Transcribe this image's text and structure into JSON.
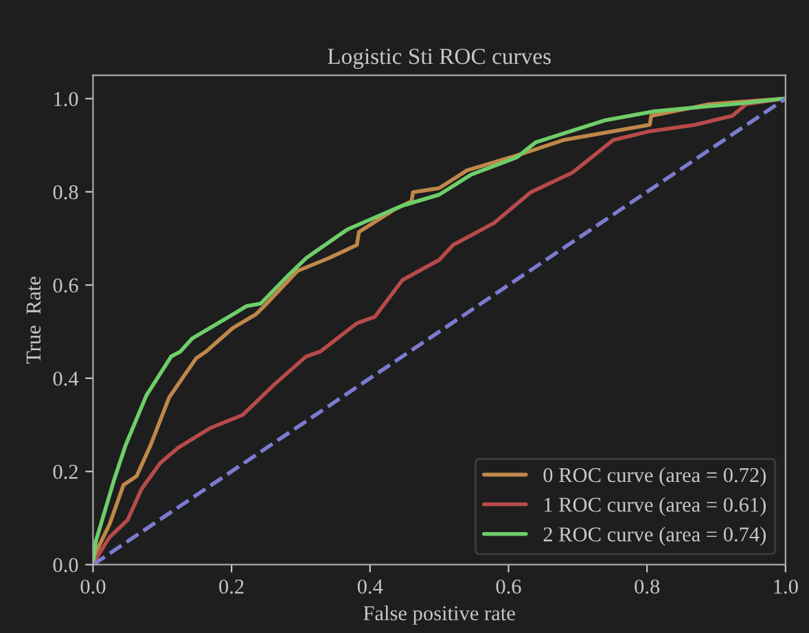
{
  "chart_data": {
    "type": "line",
    "title": "Logistic Sti ROC curves",
    "xlabel": "False positive rate",
    "ylabel": "True  Rate",
    "xlim": [
      0.0,
      1.0
    ],
    "ylim": [
      0.0,
      1.05
    ],
    "xticks": [
      {
        "value": 0,
        "label": "0.0"
      },
      0.2,
      0.4,
      0.6,
      0.8,
      {
        "value": 1,
        "label": "1.0"
      }
    ],
    "yticks": [
      {
        "value": 0,
        "label": "0.0"
      },
      0.2,
      0.4,
      0.6,
      0.8,
      {
        "value": 1,
        "label": "1.0"
      }
    ],
    "legend": "bottom right",
    "grid": false,
    "line_style": "solid",
    "series": [
      {
        "name": "0 ROC curve (area = 0.72)",
        "color": "#c0874a",
        "x": [
          0,
          0.004,
          0.024,
          0.044,
          0.063,
          0.083,
          0.11,
          0.149,
          0.163,
          0.202,
          0.235,
          0.248,
          0.295,
          0.341,
          0.381,
          0.384,
          0.434,
          0.46,
          0.462,
          0.5,
          0.54,
          0.612,
          0.679,
          0.804,
          0.806,
          0.89,
          0.996,
          1.0
        ],
        "values": [
          0,
          0.026,
          0.087,
          0.171,
          0.19,
          0.256,
          0.359,
          0.443,
          0.457,
          0.508,
          0.537,
          0.556,
          0.63,
          0.658,
          0.686,
          0.714,
          0.761,
          0.78,
          0.799,
          0.808,
          0.846,
          0.878,
          0.911,
          0.944,
          0.963,
          0.988,
          1.0,
          1.0
        ]
      },
      {
        "name": "1 ROC curve (area = 0.61)",
        "color": "#b84a4a",
        "x": [
          0,
          0.004,
          0.024,
          0.05,
          0.07,
          0.097,
          0.123,
          0.169,
          0.216,
          0.262,
          0.308,
          0.328,
          0.381,
          0.407,
          0.447,
          0.5,
          0.52,
          0.579,
          0.632,
          0.692,
          0.751,
          0.804,
          0.87,
          0.923,
          0.943,
          0.996
        ],
        "values": [
          0,
          0.012,
          0.059,
          0.096,
          0.162,
          0.218,
          0.251,
          0.293,
          0.321,
          0.387,
          0.447,
          0.457,
          0.518,
          0.532,
          0.611,
          0.654,
          0.686,
          0.733,
          0.799,
          0.841,
          0.911,
          0.93,
          0.944,
          0.963,
          0.988,
          1.0
        ]
      },
      {
        "name": "2 ROC curve (area = 0.74)",
        "color": "#6fce6a",
        "x": [
          0,
          0.004,
          0.03,
          0.047,
          0.077,
          0.113,
          0.126,
          0.143,
          0.202,
          0.222,
          0.242,
          0.282,
          0.308,
          0.367,
          0.446,
          0.5,
          0.546,
          0.612,
          0.639,
          0.738,
          0.811,
          0.937,
          0.996,
          1.0
        ],
        "values": [
          0,
          0.05,
          0.18,
          0.256,
          0.363,
          0.447,
          0.457,
          0.485,
          0.537,
          0.555,
          0.56,
          0.621,
          0.658,
          0.719,
          0.77,
          0.794,
          0.837,
          0.874,
          0.906,
          0.953,
          0.973,
          0.99,
          1.0,
          1.0
        ]
      },
      {
        "color": "#7b7bd0",
        "line_style": "dashed",
        "x": [
          0,
          1
        ],
        "values": [
          0,
          1
        ]
      }
    ]
  }
}
